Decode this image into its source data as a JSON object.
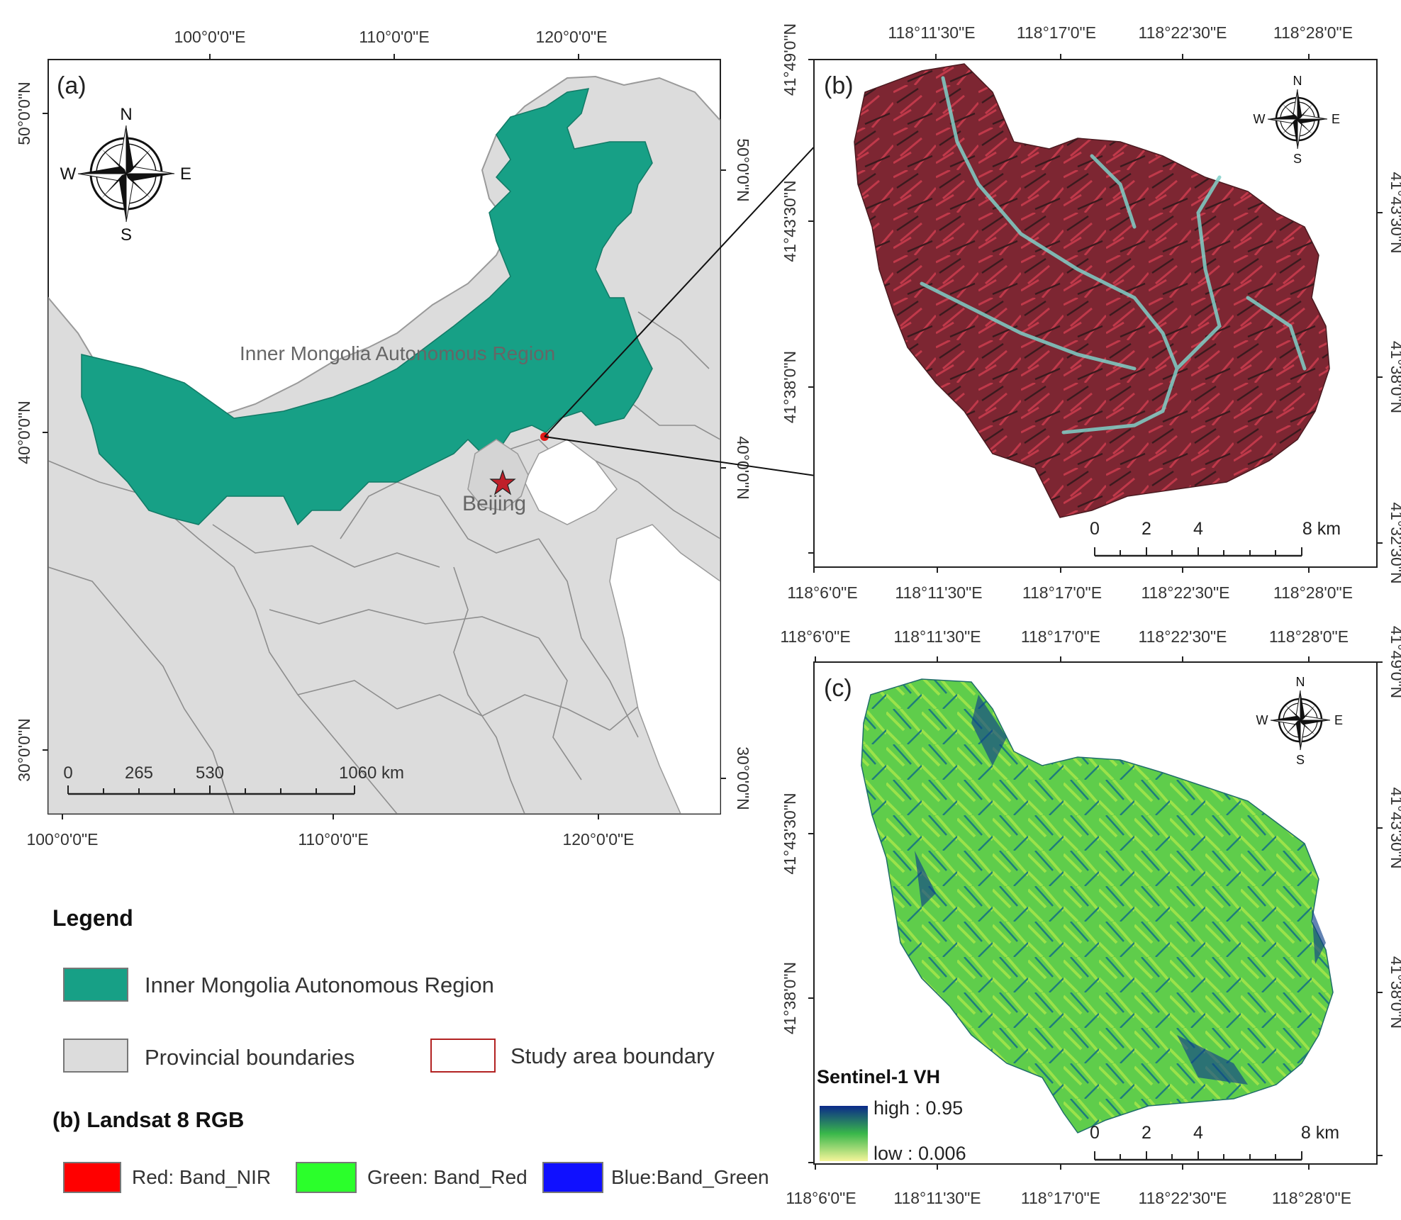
{
  "panel_a": {
    "label": "(a)",
    "top_ticks": [
      "100°0'0\"E",
      "110°0'0\"E",
      "120°0'0\"E"
    ],
    "bottom_ticks": [
      "100°0'0\"E",
      "110°0'0\"E",
      "120°0'0\"E"
    ],
    "left_ticks": [
      "50°0'0\"N",
      "40°0'0\"N",
      "30°0'0\"N"
    ],
    "right_ticks": [
      "50°0'0\"N",
      "40°0'0\"N",
      "30°0'0\"N"
    ],
    "region_label": "Inner Mongolia Autonomous Region",
    "city_label": "Beijing",
    "scale_ticks": [
      "0",
      "265",
      "530",
      "1060 km"
    ],
    "compass": {
      "n": "N",
      "s": "S",
      "e": "E",
      "w": "W"
    }
  },
  "panel_b": {
    "label": "(b)",
    "top_ticks": [
      "118°11'30\"E",
      "118°17'0\"E",
      "118°22'30\"E",
      "118°28'0\"E"
    ],
    "bottom_ticks": [
      "118°6'0\"E",
      "118°11'30\"E",
      "118°17'0\"E",
      "118°22'30\"E",
      "118°28'0\"E"
    ],
    "left_ticks": [
      "41°49'0\"N",
      "41°43'30\"N",
      "41°38'0\"N"
    ],
    "right_ticks": [
      "41°43'30\"N",
      "41°38'0\"N",
      "41°32'30\"N"
    ],
    "scale_ticks": [
      "0",
      "2",
      "4",
      "8 km"
    ],
    "compass": {
      "n": "N",
      "s": "S",
      "e": "E",
      "w": "W"
    }
  },
  "panel_c": {
    "label": "(c)",
    "top_ticks": [
      "118°6'0\"E",
      "118°11'30\"E",
      "118°17'0\"E",
      "118°22'30\"E",
      "118°28'0\"E"
    ],
    "bottom_ticks": [
      "118°6'0\"E",
      "118°11'30\"E",
      "118°17'0\"E",
      "118°22'30\"E",
      "118°28'0\"E"
    ],
    "left_ticks": [
      "41°43'30\"N",
      "41°38'0\"N"
    ],
    "right_ticks": [
      "41°49'0\"N",
      "41°43'30\"N",
      "41°38'0\"N"
    ],
    "scale_ticks": [
      "0",
      "2",
      "4",
      "8 km"
    ],
    "colorbar_title": "Sentinel-1 VH",
    "colorbar_high": "high : 0.95",
    "colorbar_low": "low : 0.006",
    "compass": {
      "n": "N",
      "s": "S",
      "e": "E",
      "w": "W"
    }
  },
  "legend": {
    "title": "Legend",
    "inner_mongolia": "Inner Mongolia Autonomous Region",
    "provincial": "Provincial boundaries",
    "study_area": "Study area boundary",
    "landsat_title": "(b) Landsat 8 RGB",
    "red": "Red: Band_NIR",
    "green": "Green: Band_Red",
    "blue": "Blue:Band_Green"
  },
  "colors": {
    "inner_mongolia": "#17a086",
    "province_fill": "#dcdcdc",
    "province_line": "#9a9a9a",
    "study_area": "#b22222",
    "landsat_red": "#ff0000",
    "landsat_green": "#2bff2b",
    "landsat_blue": "#1010ff",
    "vh_high": "#0b2a8a",
    "vh_mid": "#39b74a",
    "vh_low": "#f5f59a"
  }
}
